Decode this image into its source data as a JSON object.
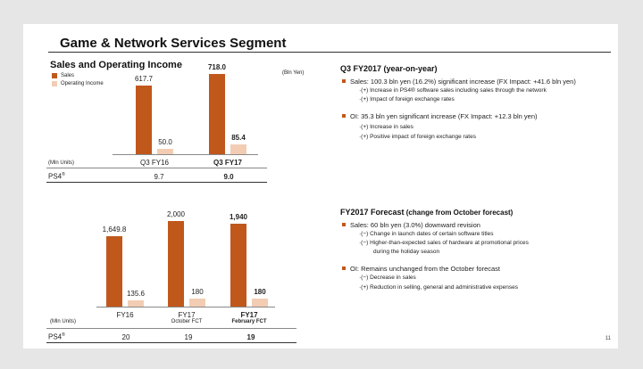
{
  "header": {
    "title": "Game & Network Services Segment"
  },
  "colors": {
    "sales": "#c0581b",
    "oi": "#f2cdb3"
  },
  "top_chart": {
    "subtitle": "Sales and Operating Income",
    "unit_note": "(Bln Yen)"
  },
  "bottom_chart": {},
  "ps4_table_top": {
    "unit_label": "(Mln Units)",
    "row_label": "PS4",
    "reg": "®",
    "values": [
      "9.7",
      "9.0"
    ]
  },
  "ps4_table_bottom": {
    "unit_label": "(Mln Units)",
    "row_label": "PS4",
    "reg": "®",
    "values": [
      "20",
      "19",
      "19"
    ]
  },
  "chart_data": [
    {
      "type": "bar",
      "title": "Sales and Operating Income",
      "legend": [
        "Sales",
        "Operating Income"
      ],
      "categories": [
        "Q3 FY16",
        "Q3 FY17"
      ],
      "series": [
        {
          "name": "Sales",
          "values": [
            617.7,
            718.0
          ],
          "labels": [
            "617.7",
            "718.0"
          ]
        },
        {
          "name": "Operating Income",
          "values": [
            50.0,
            85.4
          ],
          "labels": [
            "50.0",
            "85.4"
          ]
        }
      ],
      "ylabel": "Bln Yen",
      "ylim": [
        0,
        718.0
      ]
    },
    {
      "type": "bar",
      "title": "",
      "categories": [
        "FY16",
        "FY17",
        "FY17"
      ],
      "category_subs": [
        "",
        "October FCT",
        "February FCT"
      ],
      "series": [
        {
          "name": "Sales",
          "values": [
            1649.8,
            2000,
            1940
          ],
          "labels": [
            "1,649.8",
            "2,000",
            "1,940"
          ]
        },
        {
          "name": "Operating Income",
          "values": [
            135.6,
            180,
            180
          ],
          "labels": [
            "135.6",
            "180",
            "180"
          ]
        }
      ],
      "ylabel": "Bln Yen",
      "ylim": [
        0,
        2000
      ]
    }
  ],
  "q3": {
    "heading": "Q3 FY2017",
    "heading_suffix": " (year-on-year)",
    "sales_bullet": "Sales: 100.3 bln yen (16.2%) significant increase (FX Impact: +41.6 bln yen)",
    "sales_sub1": "·(+)  Increase in PS4® software sales including sales through the network",
    "sales_sub2": "·(+)  Impact of foreign exchange rates",
    "oi_bullet": "OI: 35.3 bln yen significant increase (FX Impact: +12.3 bln yen)",
    "oi_sub1": "·(+)  Increase in sales",
    "oi_sub2": "·(+)  Positive impact of foreign exchange rates"
  },
  "forecast": {
    "heading": "FY2017 Forecast",
    "heading_suffix": " (change from October forecast)",
    "sales_bullet": "Sales: 60 bln yen (3.0%) downward revision",
    "sales_sub1": "·(−)  Change in launch dates of certain software titles",
    "sales_sub2": "·(−)  Higher-than-expected sales of hardware at promotional prices",
    "sales_sub3": "during the holiday season",
    "oi_bullet": "OI: Remains unchanged from the October forecast",
    "oi_sub1": "·(−) Decrease in sales",
    "oi_sub2": "·(+)  Reduction in selling, general and administrative expenses"
  },
  "page_number": "11"
}
